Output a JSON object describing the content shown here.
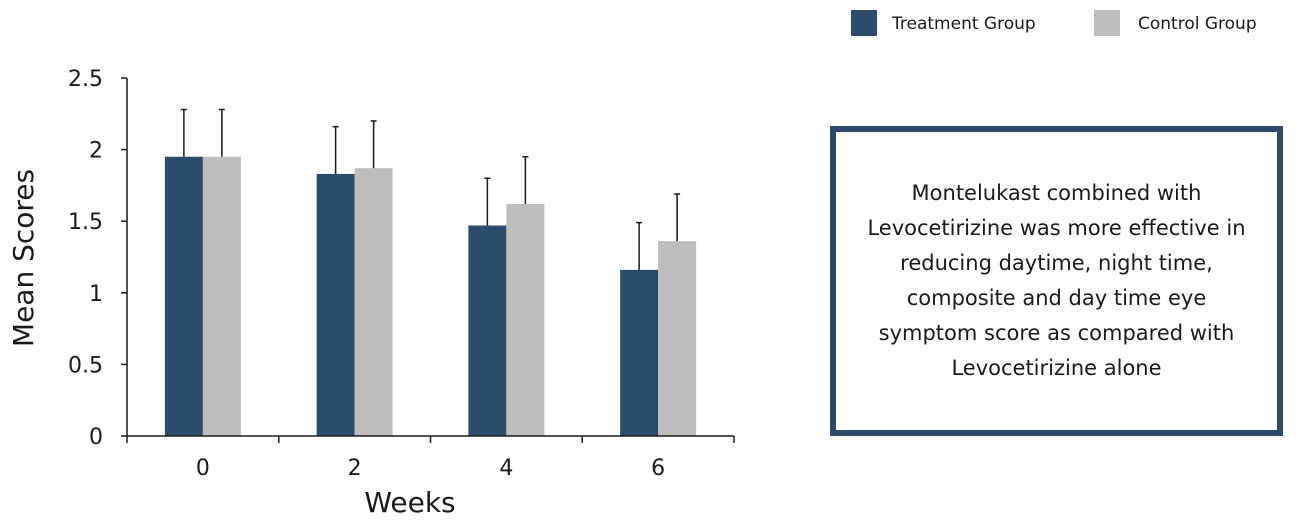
{
  "chart_data": {
    "type": "bar",
    "categories": [
      "0",
      "2",
      "4",
      "6"
    ],
    "series": [
      {
        "name": "Treatment Group",
        "values": [
          1.95,
          1.83,
          1.47,
          1.16
        ],
        "errors": [
          0.33,
          0.33,
          0.33,
          0.33
        ],
        "color": "#2c4a6b"
      },
      {
        "name": "Control Group",
        "values": [
          1.95,
          1.87,
          1.62,
          1.36
        ],
        "errors": [
          0.33,
          0.33,
          0.33,
          0.33
        ],
        "color": "#bdbdbd"
      }
    ],
    "xlabel": "Weeks",
    "ylabel": "Mean Scores",
    "ylim": [
      0,
      2.5
    ],
    "yticks": [
      "0",
      "0.5",
      "1",
      "1.5",
      "2",
      "2.5"
    ],
    "yticks_values": [
      0,
      0.5,
      1,
      1.5,
      2,
      2.5
    ],
    "grid": false,
    "legend_position": "top-right"
  },
  "note": {
    "text": "Montelukast combined with Levocetirizine was more effective in reducing daytime, night time, composite and day time eye symptom score as compared with Levocetirizine alone",
    "border_color": "#2c4a6b"
  }
}
